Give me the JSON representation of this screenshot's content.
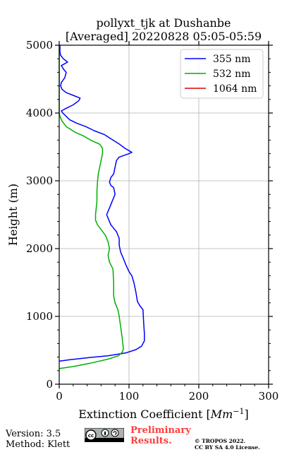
{
  "chart_data": {
    "type": "line",
    "title_line1": "pollyxt_tjk at Dushanbe",
    "title_line2": "[Averaged] 20220828 05:05-05:59",
    "xlabel_text": "Extinction Coefficient [",
    "xlabel_unit": "Mm",
    "xlabel_exp": "−1",
    "xlabel_close": "]",
    "ylabel": "Height (m)",
    "xlim": [
      0,
      300
    ],
    "ylim": [
      0,
      5000
    ],
    "xticks": [
      0,
      100,
      200,
      300
    ],
    "yticks": [
      0,
      1000,
      2000,
      3000,
      4000,
      5000
    ],
    "grid": true,
    "legend_position": "top-right",
    "series": [
      {
        "name": "355 nm",
        "color": "#0000ff",
        "points": [
          [
            0,
            340
          ],
          [
            15,
            360
          ],
          [
            40,
            390
          ],
          [
            70,
            420
          ],
          [
            95,
            460
          ],
          [
            110,
            510
          ],
          [
            118,
            560
          ],
          [
            122,
            640
          ],
          [
            122,
            750
          ],
          [
            121,
            900
          ],
          [
            120,
            1100
          ],
          [
            116,
            1150
          ],
          [
            112,
            1220
          ],
          [
            110,
            1350
          ],
          [
            107,
            1500
          ],
          [
            104,
            1600
          ],
          [
            100,
            1660
          ],
          [
            96,
            1750
          ],
          [
            92,
            1850
          ],
          [
            88,
            1950
          ],
          [
            86,
            2050
          ],
          [
            86,
            2150
          ],
          [
            82,
            2250
          ],
          [
            78,
            2300
          ],
          [
            74,
            2350
          ],
          [
            70,
            2450
          ],
          [
            68,
            2500
          ],
          [
            72,
            2600
          ],
          [
            76,
            2700
          ],
          [
            80,
            2800
          ],
          [
            78,
            2900
          ],
          [
            74,
            2930
          ],
          [
            72,
            2980
          ],
          [
            74,
            3050
          ],
          [
            78,
            3100
          ],
          [
            80,
            3200
          ],
          [
            82,
            3300
          ],
          [
            86,
            3350
          ],
          [
            100,
            3400
          ],
          [
            104,
            3420
          ],
          [
            94,
            3480
          ],
          [
            85,
            3550
          ],
          [
            74,
            3620
          ],
          [
            65,
            3680
          ],
          [
            50,
            3740
          ],
          [
            38,
            3800
          ],
          [
            25,
            3850
          ],
          [
            15,
            3900
          ],
          [
            10,
            3950
          ],
          [
            5,
            4000
          ],
          [
            3,
            4030
          ],
          [
            10,
            4070
          ],
          [
            20,
            4120
          ],
          [
            28,
            4180
          ],
          [
            30,
            4220
          ],
          [
            20,
            4260
          ],
          [
            10,
            4300
          ],
          [
            4,
            4350
          ],
          [
            2,
            4400
          ],
          [
            3,
            4450
          ],
          [
            8,
            4520
          ],
          [
            10,
            4600
          ],
          [
            6,
            4650
          ],
          [
            3,
            4700
          ],
          [
            12,
            4750
          ],
          [
            6,
            4800
          ],
          [
            2,
            4850
          ],
          [
            1,
            4900
          ],
          [
            1,
            5000
          ]
        ]
      },
      {
        "name": "532 nm",
        "color": "#00b000",
        "points": [
          [
            0,
            230
          ],
          [
            20,
            260
          ],
          [
            45,
            310
          ],
          [
            70,
            370
          ],
          [
            85,
            420
          ],
          [
            90,
            470
          ],
          [
            92,
            520
          ],
          [
            91,
            600
          ],
          [
            90,
            700
          ],
          [
            88,
            850
          ],
          [
            86,
            1000
          ],
          [
            84,
            1100
          ],
          [
            80,
            1200
          ],
          [
            78,
            1300
          ],
          [
            78,
            1500
          ],
          [
            77,
            1700
          ],
          [
            72,
            1800
          ],
          [
            70,
            1900
          ],
          [
            72,
            2000
          ],
          [
            70,
            2100
          ],
          [
            66,
            2200
          ],
          [
            60,
            2280
          ],
          [
            55,
            2350
          ],
          [
            52,
            2420
          ],
          [
            52,
            2500
          ],
          [
            53,
            2600
          ],
          [
            54,
            2700
          ],
          [
            54,
            2850
          ],
          [
            55,
            3000
          ],
          [
            56,
            3100
          ],
          [
            58,
            3200
          ],
          [
            60,
            3300
          ],
          [
            62,
            3400
          ],
          [
            62,
            3480
          ],
          [
            58,
            3540
          ],
          [
            45,
            3600
          ],
          [
            35,
            3660
          ],
          [
            22,
            3720
          ],
          [
            10,
            3800
          ],
          [
            4,
            3880
          ],
          [
            1,
            3950
          ],
          [
            0,
            4000
          ],
          [
            0,
            4500
          ],
          [
            0,
            5000
          ]
        ]
      },
      {
        "name": "1064 nm",
        "color": "#dd0000",
        "points": []
      }
    ]
  },
  "footer": {
    "version": "Version: 3.5",
    "method": "Method: Klett",
    "preliminary_line1": "Preliminary",
    "preliminary_line2": "Results.",
    "copyright_line1": "© TROPOS 2022.",
    "copyright_line2": "CC BY SA 4.0 License.",
    "license_badge": "cc-by-sa-badge"
  }
}
